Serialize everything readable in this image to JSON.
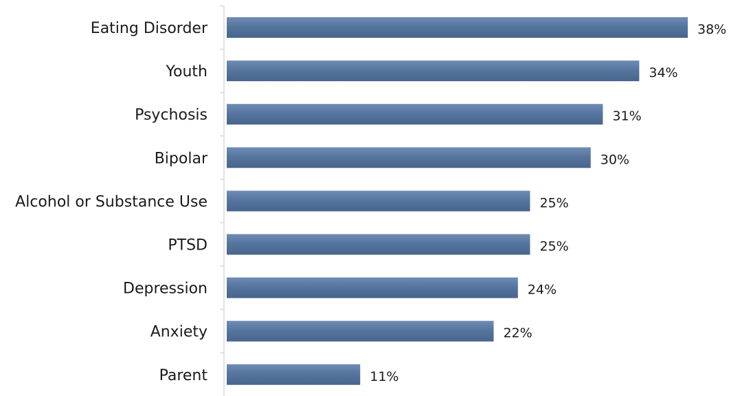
{
  "chart_data": {
    "type": "bar",
    "orientation": "horizontal",
    "categories": [
      "Eating Disorder",
      "Youth",
      "Psychosis",
      "Bipolar",
      "Alcohol or Substance Use",
      "PTSD",
      "Depression",
      "Anxiety",
      "Parent"
    ],
    "values": [
      38,
      34,
      31,
      30,
      25,
      25,
      24,
      22,
      11
    ],
    "value_labels": [
      "38%",
      "34%",
      "31%",
      "30%",
      "25%",
      "25%",
      "24%",
      "22%",
      "11%"
    ],
    "unit": "%",
    "title": "",
    "xlabel": "",
    "ylabel": "",
    "xlim": [
      0,
      38
    ],
    "grid": false,
    "legend": "none",
    "bar_color": "#56769f",
    "axis_color": "#d9d9d9"
  }
}
